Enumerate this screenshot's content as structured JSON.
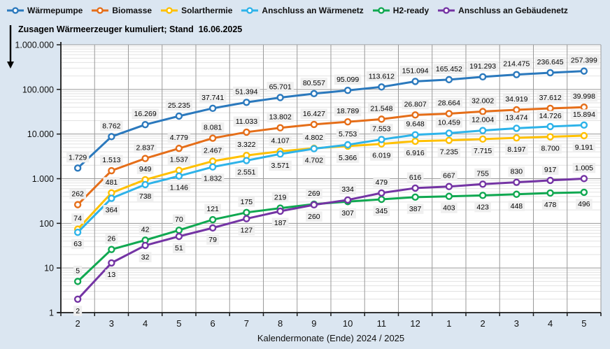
{
  "chart_data": {
    "type": "line",
    "title": "Zusagen Wärmeerzeuger kumuliert; Stand  16.06.2025",
    "xlabel": "Kalendermonate (Ende) 2024 / 2025",
    "x_categories": [
      "2",
      "3",
      "4",
      "5",
      "6",
      "7",
      "8",
      "9",
      "10",
      "11",
      "12",
      "1",
      "2",
      "3",
      "4",
      "5"
    ],
    "y_axis": {
      "scale": "log",
      "min": 1,
      "max": 1000000,
      "tick_labels": [
        "1",
        "10",
        "100",
        "1.000",
        "10.000",
        "100.000",
        "1.000.000"
      ]
    },
    "legend_position": "top",
    "grid": true,
    "number_format": "de (dot thousands separator)",
    "series": [
      {
        "name": "Wärmepumpe",
        "color": "#2B79BD",
        "values": [
          1729,
          8762,
          16269,
          25235,
          37741,
          51394,
          65701,
          80557,
          95099,
          113612,
          151094,
          165452,
          191293,
          214475,
          236645,
          257399
        ],
        "label_side": {
          "side": "above"
        }
      },
      {
        "name": "Biomasse",
        "color": "#E56E19",
        "values": [
          262,
          1513,
          2837,
          4779,
          8081,
          11033,
          13802,
          16427,
          18789,
          21548,
          26807,
          28664,
          32002,
          34919,
          37612,
          39998
        ],
        "label_side": {
          "side": "above"
        }
      },
      {
        "name": "Solarthermie",
        "color": "#FFC000",
        "values": [
          74,
          481,
          949,
          1537,
          2467,
          3322,
          4107,
          4802,
          5366,
          6019,
          6916,
          7235,
          7715,
          8197,
          8700,
          9191
        ],
        "label_side": {
          "side": "above",
          "flip_at": 8,
          "then": "below"
        }
      },
      {
        "name": "Anschluss an Wärmenetz",
        "color": "#2EB3E9",
        "values": [
          63,
          364,
          738,
          1146,
          1832,
          2551,
          3571,
          4702,
          5753,
          7553,
          9648,
          10459,
          12004,
          13474,
          14726,
          15894
        ],
        "label_side": {
          "side": "below",
          "flip_at": 8,
          "then": "above"
        }
      },
      {
        "name": "H2-ready",
        "color": "#10A851",
        "values": [
          5,
          26,
          42,
          70,
          121,
          175,
          219,
          269,
          307,
          345,
          387,
          403,
          423,
          448,
          478,
          496
        ],
        "label_side": {
          "side": "above",
          "flip_at": 8,
          "then": "below"
        }
      },
      {
        "name": "Anschluss an Gebäudenetz",
        "color": "#7434A4",
        "values": [
          2,
          13,
          32,
          51,
          79,
          127,
          187,
          260,
          334,
          479,
          616,
          667,
          755,
          830,
          917,
          1005
        ],
        "label_side": {
          "side": "below",
          "flip_at": 8,
          "then": "above"
        }
      }
    ]
  },
  "colors": {
    "background": "#dbe6f1",
    "plot_background": "#ffffff",
    "major_grid": "#9a9a9a",
    "minor_grid": "#e2e2e2",
    "axis": "#1a1a1a",
    "data_label_bg": "#efefef"
  }
}
